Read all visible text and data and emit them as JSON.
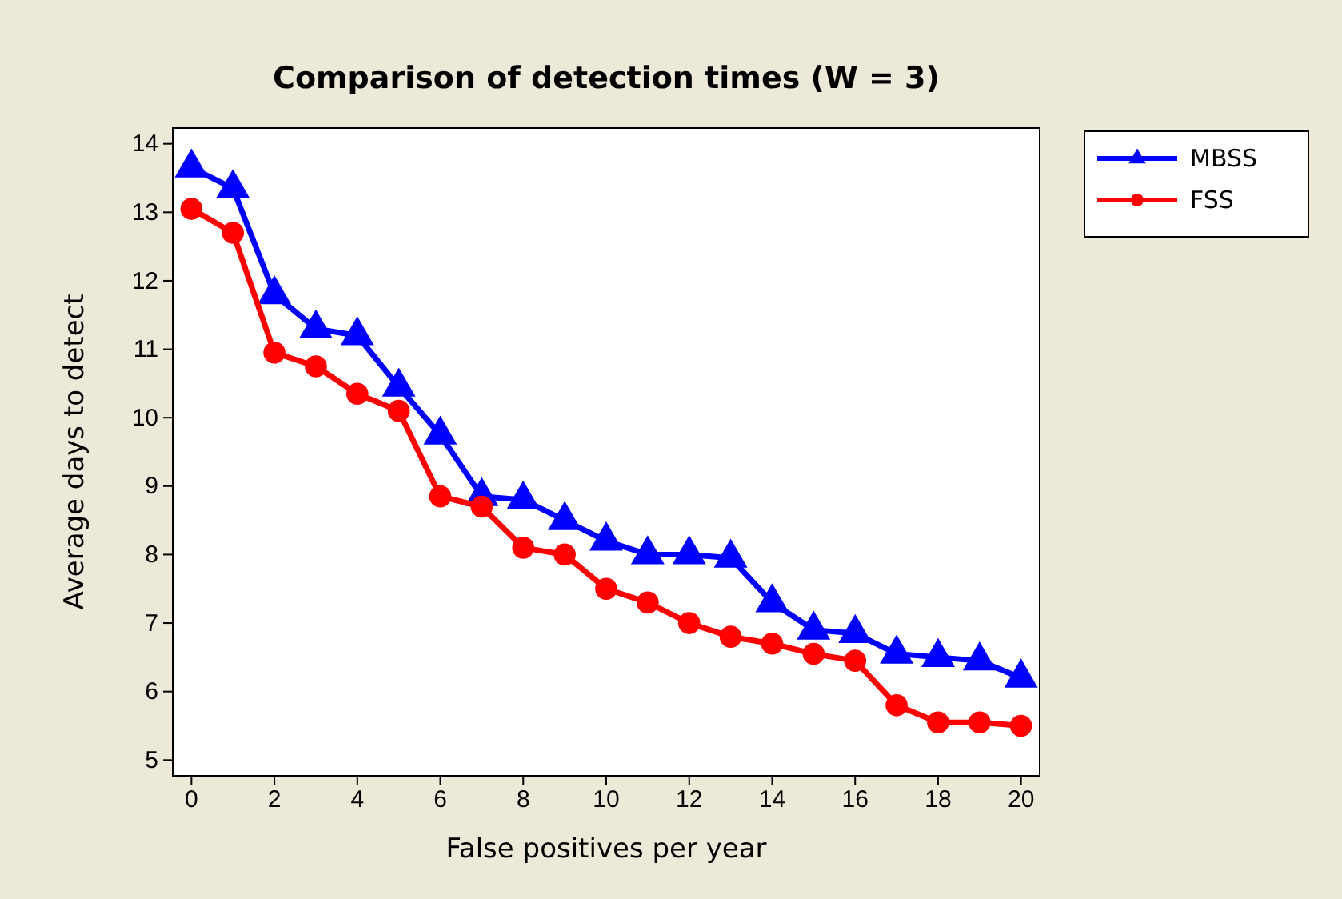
{
  "chart_data": {
    "type": "line",
    "title": "Comparison of detection times (W = 3)",
    "xlabel": "False positives per year",
    "ylabel": "Average days to detect",
    "x": [
      0,
      1,
      2,
      3,
      4,
      5,
      6,
      7,
      8,
      9,
      10,
      11,
      12,
      13,
      14,
      15,
      16,
      17,
      18,
      19,
      20
    ],
    "series": [
      {
        "name": "MBSS",
        "color": "#0000ff",
        "marker": "triangle",
        "values": [
          13.65,
          13.35,
          11.8,
          11.3,
          11.2,
          10.45,
          9.75,
          8.85,
          8.8,
          8.5,
          8.2,
          8.0,
          8.0,
          7.95,
          7.3,
          6.9,
          6.85,
          6.55,
          6.5,
          6.45,
          6.2
        ]
      },
      {
        "name": "FSS",
        "color": "#ff0000",
        "marker": "circle",
        "values": [
          13.05,
          12.7,
          10.95,
          10.75,
          10.35,
          10.1,
          8.85,
          8.7,
          8.1,
          8.0,
          7.5,
          7.3,
          7.0,
          6.8,
          6.7,
          6.55,
          6.45,
          5.8,
          5.55,
          5.55,
          5.5
        ]
      }
    ],
    "xlim": [
      -0.45,
      20.45
    ],
    "xticks": [
      0,
      2,
      4,
      6,
      8,
      10,
      12,
      14,
      16,
      18,
      20
    ],
    "ylim": [
      4.77,
      14.23
    ],
    "yticks": [
      5,
      6,
      7,
      8,
      9,
      10,
      11,
      12,
      13,
      14
    ],
    "grid": false,
    "legend": "top right",
    "line_style": "solid"
  }
}
